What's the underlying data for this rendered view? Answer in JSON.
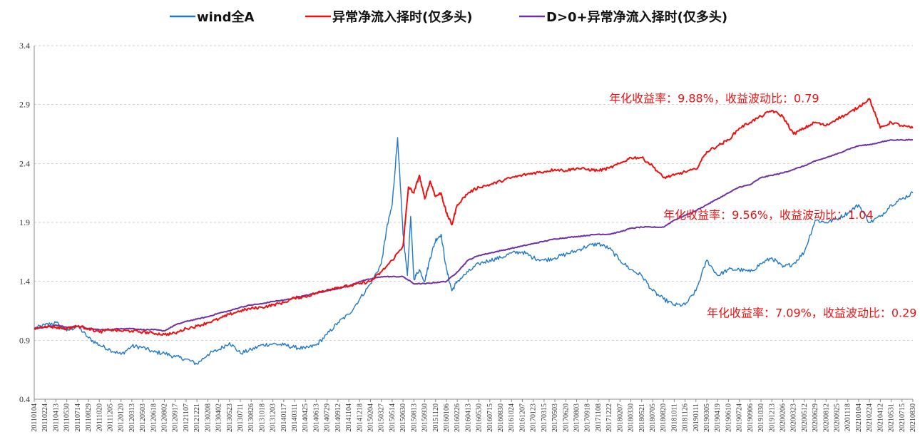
{
  "chart_data": {
    "type": "line",
    "title": "",
    "xlabel": "",
    "ylabel": "",
    "ylim": [
      0.4,
      3.4
    ],
    "yticks": [
      "0.4",
      "0.9",
      "1.4",
      "1.9",
      "2.4",
      "2.9",
      "3.4"
    ],
    "grid": "horizontal dashed",
    "legend": "top-center",
    "x_tick_labels": [
      "20110104",
      "20110224",
      "20110413",
      "20110530",
      "20110714",
      "20110829",
      "20111020",
      "20111205",
      "20120120",
      "20120313",
      "20120503",
      "20120618",
      "20120802",
      "20120917",
      "20121107",
      "20121221",
      "20130208",
      "20130402",
      "20130523",
      "20130711",
      "20130826",
      "20131018",
      "20131203",
      "20140117",
      "20140311",
      "20140425",
      "20140613",
      "20140729",
      "20140912",
      "20141104",
      "20141218",
      "20150204",
      "20150327",
      "20150514",
      "20150630",
      "20150813",
      "20150930",
      "20151120",
      "20160106",
      "20160226",
      "20160413",
      "20160530",
      "20160715",
      "20160830",
      "20161024",
      "20161207",
      "20170123",
      "20170315",
      "20170503",
      "20170620",
      "20170803",
      "20170918",
      "20171108",
      "20171222",
      "20180207",
      "20180330",
      "20180521",
      "20180705",
      "20180820",
      "20181011",
      "20181126",
      "20190111",
      "20190305",
      "20190419",
      "20190610",
      "20190724",
      "20190906",
      "20191030",
      "20191213",
      "20200206",
      "20200323",
      "20200512",
      "20200629",
      "20200812",
      "20200925",
      "20201118",
      "20210104",
      "20210224",
      "20210412",
      "20210531",
      "20210715",
      "20210830"
    ],
    "series": [
      {
        "name": "wind全A",
        "color": "#1f78c8",
        "points": [
          [
            0,
            1.0
          ],
          [
            1,
            1.03
          ],
          [
            2,
            1.05
          ],
          [
            3,
            0.98
          ],
          [
            4,
            1.02
          ],
          [
            5,
            0.92
          ],
          [
            6,
            0.86
          ],
          [
            7,
            0.82
          ],
          [
            8,
            0.78
          ],
          [
            9,
            0.85
          ],
          [
            10,
            0.84
          ],
          [
            11,
            0.8
          ],
          [
            12,
            0.79
          ],
          [
            13,
            0.76
          ],
          [
            14,
            0.74
          ],
          [
            15,
            0.7
          ],
          [
            16,
            0.78
          ],
          [
            17,
            0.82
          ],
          [
            18,
            0.88
          ],
          [
            19,
            0.79
          ],
          [
            20,
            0.82
          ],
          [
            21,
            0.86
          ],
          [
            22,
            0.87
          ],
          [
            23,
            0.86
          ],
          [
            24,
            0.84
          ],
          [
            25,
            0.83
          ],
          [
            26,
            0.86
          ],
          [
            27,
            0.95
          ],
          [
            28,
            1.05
          ],
          [
            29,
            1.12
          ],
          [
            30,
            1.25
          ],
          [
            31,
            1.38
          ],
          [
            32,
            1.55
          ],
          [
            32.5,
            1.85
          ],
          [
            33,
            2.05
          ],
          [
            33.5,
            2.62
          ],
          [
            34,
            1.8
          ],
          [
            34.4,
            1.45
          ],
          [
            34.7,
            1.95
          ],
          [
            35,
            1.42
          ],
          [
            35.5,
            1.5
          ],
          [
            36,
            1.4
          ],
          [
            36.5,
            1.6
          ],
          [
            37,
            1.75
          ],
          [
            37.5,
            1.8
          ],
          [
            38,
            1.5
          ],
          [
            38.5,
            1.32
          ],
          [
            39,
            1.4
          ],
          [
            40,
            1.48
          ],
          [
            41,
            1.55
          ],
          [
            42,
            1.58
          ],
          [
            43,
            1.6
          ],
          [
            44,
            1.64
          ],
          [
            45,
            1.65
          ],
          [
            46,
            1.6
          ],
          [
            47,
            1.58
          ],
          [
            48,
            1.6
          ],
          [
            49,
            1.63
          ],
          [
            50,
            1.66
          ],
          [
            51,
            1.7
          ],
          [
            52,
            1.72
          ],
          [
            53,
            1.68
          ],
          [
            54,
            1.58
          ],
          [
            55,
            1.5
          ],
          [
            56,
            1.45
          ],
          [
            57,
            1.32
          ],
          [
            58,
            1.25
          ],
          [
            59,
            1.2
          ],
          [
            60,
            1.2
          ],
          [
            61,
            1.32
          ],
          [
            62,
            1.58
          ],
          [
            63,
            1.45
          ],
          [
            64,
            1.5
          ],
          [
            65,
            1.5
          ],
          [
            66,
            1.48
          ],
          [
            67,
            1.55
          ],
          [
            68,
            1.6
          ],
          [
            69,
            1.52
          ],
          [
            70,
            1.55
          ],
          [
            71,
            1.65
          ],
          [
            72,
            1.92
          ],
          [
            73,
            1.9
          ],
          [
            74,
            1.93
          ],
          [
            75,
            1.98
          ],
          [
            76,
            2.05
          ],
          [
            77,
            1.9
          ],
          [
            78,
            1.95
          ],
          [
            79,
            2.05
          ],
          [
            80,
            2.1
          ],
          [
            81,
            2.15
          ]
        ]
      },
      {
        "name": "异常净流入择时(仅多头)",
        "color": "#ee1111",
        "points": [
          [
            0,
            1.0
          ],
          [
            1,
            1.02
          ],
          [
            2,
            1.01
          ],
          [
            3,
            1.0
          ],
          [
            4,
            1.02
          ],
          [
            5,
            1.0
          ],
          [
            6,
            0.97
          ],
          [
            7,
            0.99
          ],
          [
            8,
            0.98
          ],
          [
            9,
            0.98
          ],
          [
            10,
            0.97
          ],
          [
            11,
            0.96
          ],
          [
            12,
            0.95
          ],
          [
            13,
            0.96
          ],
          [
            14,
            1.0
          ],
          [
            15,
            1.02
          ],
          [
            16,
            1.05
          ],
          [
            17,
            1.08
          ],
          [
            18,
            1.12
          ],
          [
            19,
            1.15
          ],
          [
            20,
            1.17
          ],
          [
            21,
            1.18
          ],
          [
            22,
            1.2
          ],
          [
            23,
            1.22
          ],
          [
            24,
            1.26
          ],
          [
            25,
            1.27
          ],
          [
            26,
            1.3
          ],
          [
            27,
            1.33
          ],
          [
            28,
            1.35
          ],
          [
            29,
            1.36
          ],
          [
            30,
            1.38
          ],
          [
            31,
            1.4
          ],
          [
            32,
            1.48
          ],
          [
            33,
            1.58
          ],
          [
            34,
            1.7
          ],
          [
            34.5,
            2.2
          ],
          [
            35,
            2.15
          ],
          [
            35.5,
            2.3
          ],
          [
            36,
            2.1
          ],
          [
            36.5,
            2.25
          ],
          [
            37,
            2.12
          ],
          [
            37.5,
            2.15
          ],
          [
            38,
            1.98
          ],
          [
            38.5,
            1.88
          ],
          [
            39,
            2.05
          ],
          [
            40,
            2.15
          ],
          [
            41,
            2.2
          ],
          [
            42,
            2.22
          ],
          [
            43,
            2.25
          ],
          [
            44,
            2.28
          ],
          [
            45,
            2.3
          ],
          [
            46,
            2.32
          ],
          [
            47,
            2.33
          ],
          [
            48,
            2.35
          ],
          [
            49,
            2.34
          ],
          [
            50,
            2.36
          ],
          [
            51,
            2.35
          ],
          [
            52,
            2.34
          ],
          [
            53,
            2.36
          ],
          [
            54,
            2.4
          ],
          [
            55,
            2.45
          ],
          [
            56,
            2.45
          ],
          [
            57,
            2.38
          ],
          [
            58,
            2.28
          ],
          [
            59,
            2.3
          ],
          [
            60,
            2.33
          ],
          [
            61,
            2.35
          ],
          [
            62,
            2.5
          ],
          [
            63,
            2.55
          ],
          [
            64,
            2.6
          ],
          [
            65,
            2.7
          ],
          [
            66,
            2.75
          ],
          [
            67,
            2.8
          ],
          [
            68,
            2.85
          ],
          [
            69,
            2.8
          ],
          [
            70,
            2.65
          ],
          [
            71,
            2.7
          ],
          [
            72,
            2.75
          ],
          [
            73,
            2.72
          ],
          [
            74,
            2.78
          ],
          [
            75,
            2.82
          ],
          [
            76,
            2.88
          ],
          [
            77,
            2.95
          ],
          [
            78,
            2.7
          ],
          [
            79,
            2.75
          ],
          [
            80,
            2.72
          ],
          [
            81,
            2.7
          ]
        ]
      },
      {
        "name": "D>0+异常净流入择时(仅多头)",
        "color": "#7030a0",
        "points": [
          [
            0,
            1.0
          ],
          [
            1,
            1.01
          ],
          [
            2,
            1.03
          ],
          [
            3,
            1.01
          ],
          [
            4,
            1.02
          ],
          [
            5,
            1.0
          ],
          [
            6,
            0.99
          ],
          [
            7,
            0.99
          ],
          [
            8,
            1.0
          ],
          [
            9,
            1.0
          ],
          [
            10,
            0.99
          ],
          [
            11,
            0.99
          ],
          [
            12,
            0.98
          ],
          [
            13,
            1.03
          ],
          [
            14,
            1.06
          ],
          [
            15,
            1.08
          ],
          [
            16,
            1.1
          ],
          [
            17,
            1.13
          ],
          [
            18,
            1.15
          ],
          [
            19,
            1.18
          ],
          [
            20,
            1.2
          ],
          [
            21,
            1.21
          ],
          [
            22,
            1.23
          ],
          [
            23,
            1.24
          ],
          [
            24,
            1.26
          ],
          [
            25,
            1.28
          ],
          [
            26,
            1.3
          ],
          [
            27,
            1.32
          ],
          [
            28,
            1.34
          ],
          [
            29,
            1.36
          ],
          [
            30,
            1.4
          ],
          [
            31,
            1.42
          ],
          [
            32,
            1.44
          ],
          [
            33,
            1.44
          ],
          [
            34,
            1.44
          ],
          [
            35,
            1.38
          ],
          [
            36,
            1.38
          ],
          [
            37,
            1.39
          ],
          [
            38,
            1.4
          ],
          [
            39,
            1.48
          ],
          [
            40,
            1.58
          ],
          [
            41,
            1.62
          ],
          [
            42,
            1.64
          ],
          [
            43,
            1.66
          ],
          [
            44,
            1.68
          ],
          [
            45,
            1.7
          ],
          [
            46,
            1.72
          ],
          [
            47,
            1.74
          ],
          [
            48,
            1.76
          ],
          [
            49,
            1.77
          ],
          [
            50,
            1.78
          ],
          [
            51,
            1.79
          ],
          [
            52,
            1.8
          ],
          [
            53,
            1.8
          ],
          [
            54,
            1.82
          ],
          [
            55,
            1.85
          ],
          [
            56,
            1.86
          ],
          [
            57,
            1.86
          ],
          [
            58,
            1.86
          ],
          [
            59,
            1.92
          ],
          [
            60,
            1.96
          ],
          [
            61,
            2.0
          ],
          [
            62,
            2.05
          ],
          [
            63,
            2.1
          ],
          [
            64,
            2.15
          ],
          [
            65,
            2.2
          ],
          [
            66,
            2.22
          ],
          [
            67,
            2.28
          ],
          [
            68,
            2.3
          ],
          [
            69,
            2.32
          ],
          [
            70,
            2.35
          ],
          [
            71,
            2.38
          ],
          [
            72,
            2.42
          ],
          [
            73,
            2.45
          ],
          [
            74,
            2.48
          ],
          [
            75,
            2.52
          ],
          [
            76,
            2.55
          ],
          [
            77,
            2.56
          ],
          [
            78,
            2.58
          ],
          [
            79,
            2.6
          ],
          [
            80,
            2.6
          ],
          [
            81,
            2.6
          ]
        ]
      }
    ],
    "annotations": [
      {
        "text": "年化收益率：9.88%，收益波动比：0.79",
        "color": "#ee1111",
        "anchor_x": 53,
        "anchor_y": 2.92
      },
      {
        "text": "年化收益率：9.56%，收益波动比：1.04",
        "color": "#ee1111",
        "anchor_x": 58,
        "anchor_y": 1.93
      },
      {
        "text": "年化收益率：7.09%，收益波动比：0.29",
        "color": "#ee1111",
        "anchor_x": 62,
        "anchor_y": 1.1
      }
    ]
  }
}
